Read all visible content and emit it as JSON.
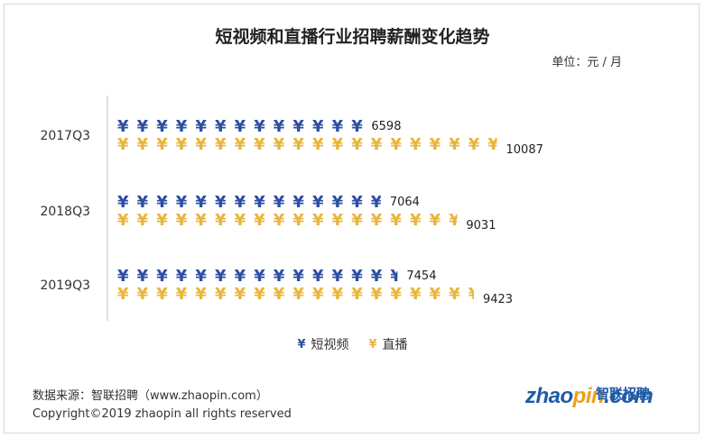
{
  "title": "短视频和直播行业招聘薪酬变化趋势",
  "unit": "单位：元 / 月",
  "chart_data": {
    "type": "bar",
    "categories": [
      "2017Q3",
      "2018Q3",
      "2019Q3"
    ],
    "series": [
      {
        "name": "短视频",
        "values": [
          6598,
          7064,
          7454
        ],
        "color": "#2d4fa3"
      },
      {
        "name": "直播",
        "values": [
          10087,
          9031,
          9423
        ],
        "color": "#e8b53d"
      }
    ],
    "value_symbol": "¥",
    "orientation": "horizontal",
    "legend_position": "bottom"
  },
  "legend": {
    "items": [
      {
        "label": "短视频",
        "marker": "¥",
        "color": "#2d4fa3"
      },
      {
        "label": "直播",
        "marker": "¥",
        "color": "#e8b53d"
      }
    ]
  },
  "footer": {
    "source": "数据来源：智联招聘（www.zhaopin.com）",
    "copyright": "Copyright©2019 zhaopin all rights reserved"
  },
  "logo": {
    "part1": "zhao",
    "part2": "pin",
    "part3": ".com",
    "cn": "智联招聘"
  }
}
